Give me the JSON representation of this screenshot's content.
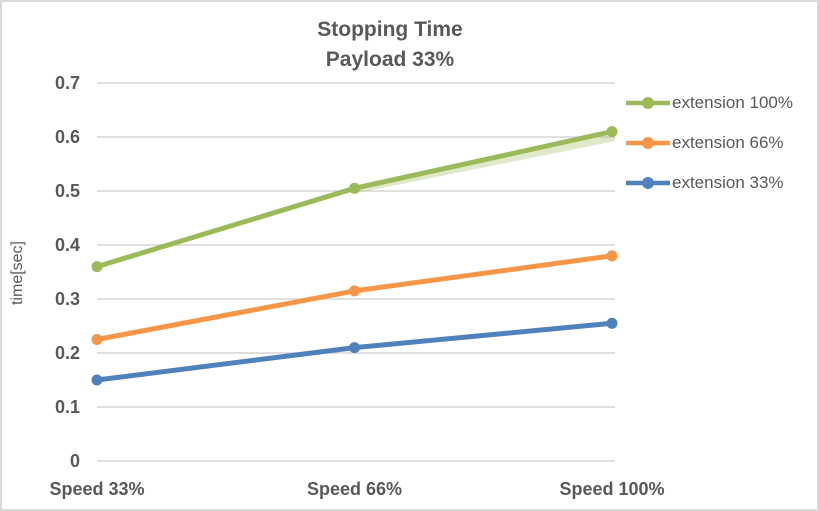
{
  "window": {
    "background": "#ffffff",
    "border_color": "#d9d9d9"
  },
  "colors": {
    "text_gray": "#595959",
    "gridline": "#d6d6d6",
    "series_green": "#9bbb59",
    "series_orange": "#f79646",
    "series_blue": "#4f81bd",
    "ghost_green": "#9bbb59"
  },
  "chart_data": {
    "type": "line",
    "title": "Stopping Time",
    "subtitle": "Payload 33%",
    "xlabel": "",
    "ylabel": "time[sec]",
    "categories": [
      "Speed 33%",
      "Speed 66%",
      "Speed 100%"
    ],
    "series": [
      {
        "name": "extension 100%",
        "color": "#9bbb59",
        "values": [
          0.36,
          0.505,
          0.61
        ]
      },
      {
        "name": "extension 66%",
        "color": "#f79646",
        "values": [
          0.225,
          0.315,
          0.38
        ]
      },
      {
        "name": "extension 33%",
        "color": "#4f81bd",
        "values": [
          0.15,
          0.21,
          0.255
        ]
      }
    ],
    "ghost_series": {
      "name": "extension 100% shadow",
      "color": "#9bbb59",
      "opacity": 0.32,
      "values": [
        null,
        0.502,
        0.598
      ]
    },
    "ylim": [
      0,
      0.7
    ],
    "ytick_step": 0.1,
    "yticks": [
      "0",
      "0.1",
      "0.2",
      "0.3",
      "0.4",
      "0.5",
      "0.6",
      "0.7"
    ],
    "grid": true,
    "legend_position": "right",
    "legend_entries": [
      "extension 100%",
      "extension 66%",
      "extension 33%"
    ]
  }
}
